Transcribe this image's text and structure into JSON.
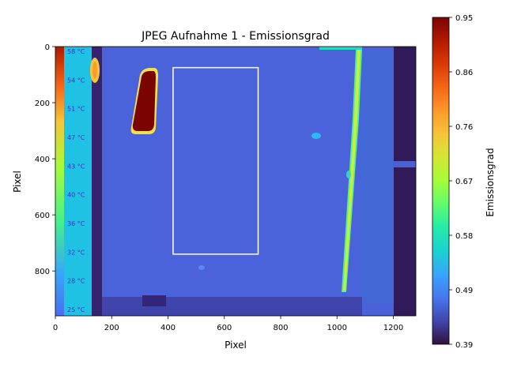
{
  "chart_data": {
    "type": "heatmap",
    "title": "JPEG Aufnahme 1 - Emissionsgrad",
    "xlabel": "Pixel",
    "ylabel": "Pixel",
    "xlim": [
      0,
      1280
    ],
    "ylim": [
      960,
      0
    ],
    "x_ticks": [
      0,
      200,
      400,
      600,
      800,
      1000,
      1200
    ],
    "y_ticks": [
      0,
      200,
      400,
      600,
      800
    ],
    "colorbar": {
      "label": "Emissionsgrad",
      "range": [
        0.39,
        0.95
      ],
      "ticks": [
        "0.95",
        "0.86",
        "0.76",
        "0.67",
        "0.58",
        "0.49",
        "0.39"
      ],
      "colormap": "turbo"
    },
    "embedded_scale_labels": [
      "58 °C",
      "54 °C",
      "51 °C",
      "47 °C",
      "43 °C",
      "40 °C",
      "36 °C",
      "32 °C",
      "28 °C",
      "25 °C"
    ],
    "roi_rectangle": {
      "x": [
        418,
        720
      ],
      "y": [
        75,
        740
      ],
      "color": "#ffffff"
    },
    "regions": [
      {
        "name": "background",
        "emissivity": 0.45
      },
      {
        "name": "hot-spot",
        "x": [
          260,
          350
        ],
        "y": [
          80,
          300
        ],
        "emissivity": 0.95
      },
      {
        "name": "left-scale-strip",
        "x": [
          30,
          128
        ],
        "y": [
          0,
          960
        ],
        "emissivity": 0.56
      },
      {
        "name": "right-edge-line",
        "x": [
          1000,
          1075
        ],
        "y": [
          0,
          900
        ],
        "emissivity": 0.6
      },
      {
        "name": "right-dark-band",
        "x": [
          1200,
          1280
        ],
        "y": [
          0,
          960
        ],
        "emissivity": 0.4
      }
    ]
  }
}
